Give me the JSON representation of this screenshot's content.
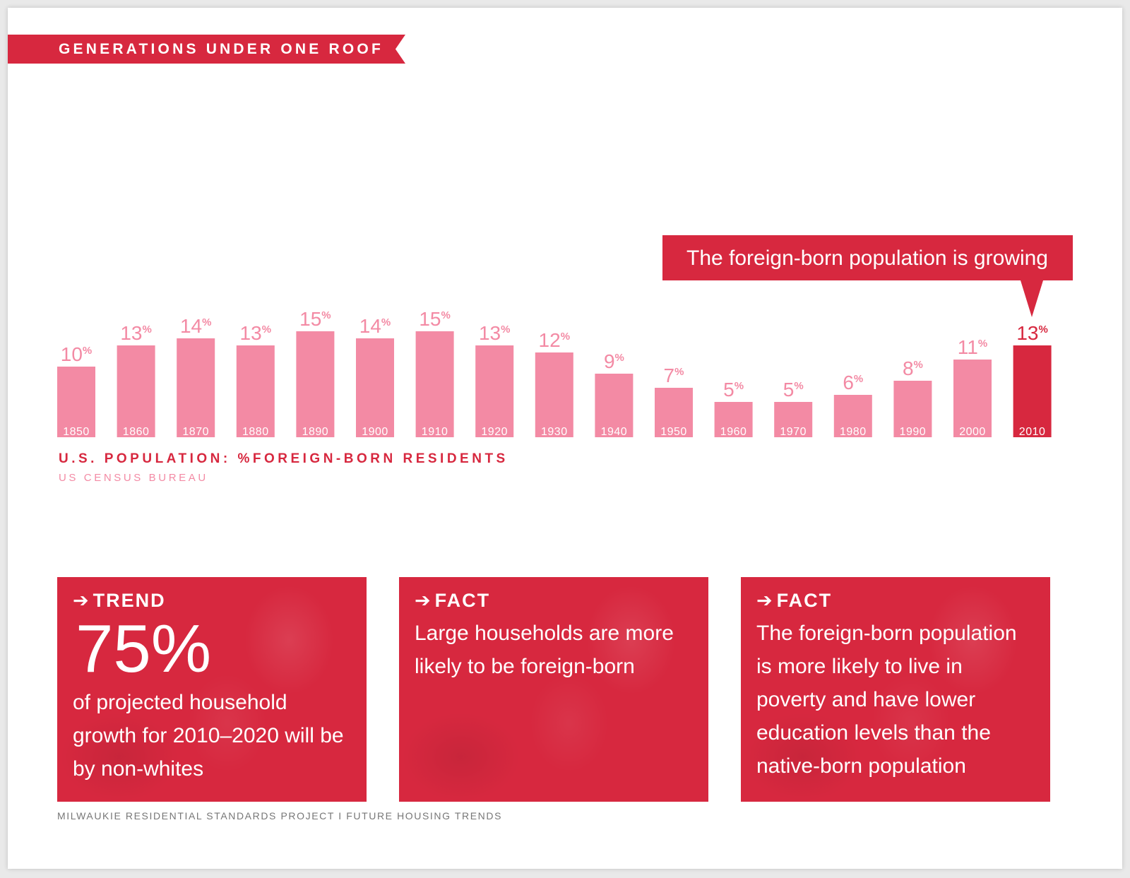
{
  "header": {
    "ribbon_label": "GENERATIONS UNDER ONE ROOF"
  },
  "chart_data": {
    "type": "bar",
    "title": "U.S. POPULATION: %FOREIGN-BORN RESIDENTS",
    "source": "US CENSUS BUREAU",
    "categories": [
      "1850",
      "1860",
      "1870",
      "1880",
      "1890",
      "1900",
      "1910",
      "1920",
      "1930",
      "1940",
      "1950",
      "1960",
      "1970",
      "1980",
      "1990",
      "2000",
      "2010"
    ],
    "values": [
      10,
      13,
      14,
      13,
      15,
      14,
      15,
      13,
      12,
      9,
      7,
      5,
      5,
      6,
      8,
      11,
      13
    ],
    "unit": "%",
    "highlight_index": 16,
    "annotation": "The foreign-born population is growing",
    "colors": {
      "bar": "#f38aa4",
      "highlight": "#d7283f"
    }
  },
  "cards": [
    {
      "label": "TREND",
      "big": "75%",
      "text": "of projected household growth for 2010–2020 will be by non-whites"
    },
    {
      "label": "FACT",
      "text": "Large households are more likely to be foreign-born"
    },
    {
      "label": "FACT",
      "text": "The foreign-born population is more likely to live in poverty and have lower education levels than the native-born population"
    }
  ],
  "footer": {
    "text": "MILWAUKIE RESIDENTIAL STANDARDS PROJECT I FUTURE HOUSING TRENDS"
  },
  "icons": {
    "card_label_arrow": "arrow-right-icon"
  },
  "theme": {
    "accent": "#d7283f",
    "accent_light": "#f38aa4"
  }
}
